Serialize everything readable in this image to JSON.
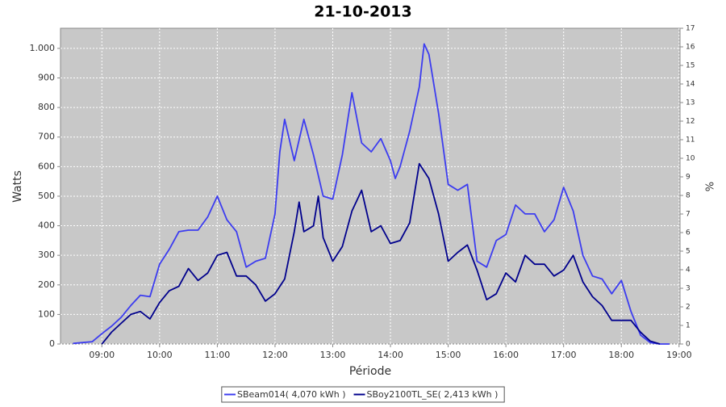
{
  "chart_data": {
    "type": "line",
    "title": "21-10-2013",
    "xlabel": "Période",
    "ylabel": "Watts",
    "y2label": "%",
    "grid": true,
    "legend": "bottom",
    "xlim": [
      "08:17",
      "19:01"
    ],
    "xticks": [
      "09:00",
      "10:00",
      "11:00",
      "12:00",
      "13:00",
      "14:00",
      "15:00",
      "16:00",
      "17:00",
      "18:00",
      "19:00"
    ],
    "ylim": [
      0,
      1068
    ],
    "yticks": [
      0,
      100,
      200,
      300,
      400,
      500,
      600,
      700,
      800,
      900,
      {
        "value": 1000,
        "label": "1.000"
      }
    ],
    "y2lim": [
      0,
      17
    ],
    "y2ticks": [
      0,
      1,
      2,
      3,
      4,
      5,
      6,
      7,
      8,
      9,
      10,
      11,
      12,
      13,
      14,
      15,
      16,
      17
    ],
    "series": [
      {
        "name": "SBeam014( 4,070 kWh )",
        "color": "#3c3cf0",
        "x": [
          "08:30",
          "08:40",
          "08:50",
          "09:00",
          "09:10",
          "09:20",
          "09:30",
          "09:40",
          "09:50",
          "10:00",
          "10:10",
          "10:20",
          "10:30",
          "10:40",
          "10:50",
          "11:00",
          "11:10",
          "11:20",
          "11:30",
          "11:40",
          "11:50",
          "12:00",
          "12:05",
          "12:10",
          "12:20",
          "12:30",
          "12:40",
          "12:50",
          "13:00",
          "13:10",
          "13:20",
          "13:30",
          "13:40",
          "13:50",
          "14:00",
          "14:05",
          "14:10",
          "14:20",
          "14:30",
          "14:35",
          "14:40",
          "14:50",
          "15:00",
          "15:10",
          "15:20",
          "15:30",
          "15:40",
          "15:50",
          "16:00",
          "16:10",
          "16:20",
          "16:30",
          "16:40",
          "16:50",
          "17:00",
          "17:10",
          "17:20",
          "17:30",
          "17:40",
          "17:50",
          "18:00",
          "18:10",
          "18:20",
          "18:30",
          "18:40",
          "18:50"
        ],
        "values": [
          2,
          5,
          8,
          35,
          60,
          90,
          130,
          165,
          160,
          270,
          320,
          380,
          385,
          385,
          430,
          500,
          420,
          380,
          260,
          280,
          290,
          440,
          650,
          760,
          620,
          760,
          640,
          500,
          490,
          640,
          850,
          680,
          650,
          695,
          620,
          560,
          600,
          720,
          870,
          1015,
          980,
          780,
          540,
          520,
          540,
          280,
          260,
          350,
          370,
          470,
          440,
          440,
          380,
          420,
          530,
          450,
          300,
          230,
          220,
          170,
          215,
          110,
          30,
          5,
          0,
          0
        ]
      },
      {
        "name": "SBoy2100TL_SE( 2,413 kWh )",
        "color": "#00008c",
        "x": [
          "09:00",
          "09:10",
          "09:20",
          "09:30",
          "09:40",
          "09:50",
          "10:00",
          "10:10",
          "10:20",
          "10:30",
          "10:40",
          "10:50",
          "11:00",
          "11:10",
          "11:20",
          "11:30",
          "11:40",
          "11:50",
          "12:00",
          "12:10",
          "12:20",
          "12:25",
          "12:30",
          "12:40",
          "12:45",
          "12:50",
          "13:00",
          "13:10",
          "13:20",
          "13:30",
          "13:40",
          "13:50",
          "14:00",
          "14:10",
          "14:20",
          "14:30",
          "14:40",
          "14:50",
          "15:00",
          "15:10",
          "15:20",
          "15:30",
          "15:40",
          "15:50",
          "16:00",
          "16:10",
          "16:20",
          "16:30",
          "16:40",
          "16:50",
          "17:00",
          "17:10",
          "17:20",
          "17:30",
          "17:40",
          "17:50",
          "18:00",
          "18:10",
          "18:20",
          "18:30",
          "18:40"
        ],
        "values": [
          0,
          40,
          70,
          100,
          110,
          85,
          140,
          180,
          195,
          255,
          215,
          240,
          300,
          310,
          230,
          230,
          200,
          145,
          170,
          220,
          380,
          480,
          380,
          400,
          500,
          360,
          280,
          330,
          450,
          520,
          380,
          400,
          340,
          350,
          410,
          610,
          560,
          440,
          280,
          310,
          335,
          250,
          150,
          170,
          240,
          210,
          300,
          270,
          270,
          230,
          250,
          300,
          210,
          160,
          130,
          80,
          80,
          80,
          40,
          10,
          0
        ]
      }
    ]
  }
}
